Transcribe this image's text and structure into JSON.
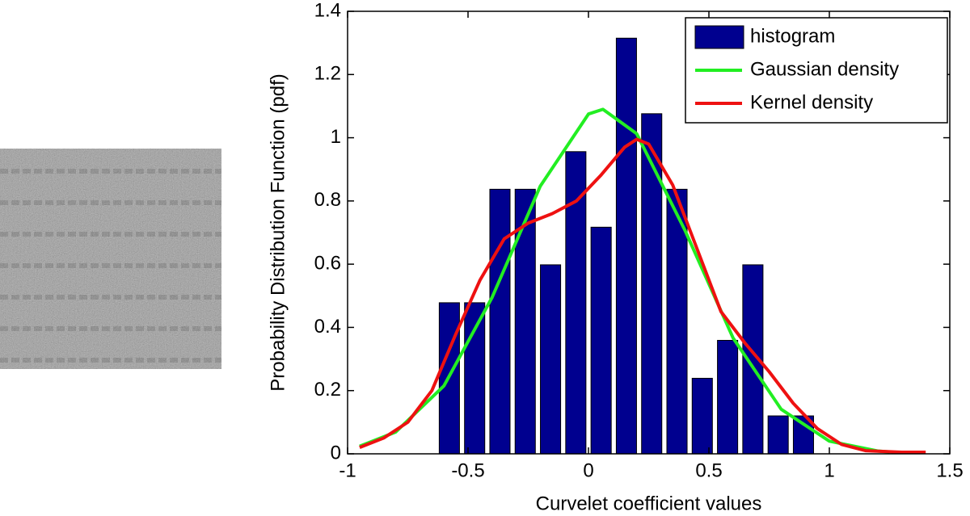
{
  "chart_data": {
    "type": "histogram",
    "xlabel": "Curvelet coefficient values",
    "ylabel": "Probability Distribution Function (pdf)",
    "bins": [
      -0.63,
      -0.525,
      -0.42,
      -0.315,
      -0.21,
      -0.105,
      0,
      0.105,
      0.21,
      0.315,
      0.42,
      0.525,
      0.63,
      0.735,
      0.84,
      0.945
    ],
    "series": [
      {
        "name": "histogram",
        "color": "#00008f",
        "values": [
          0.478,
          0.478,
          0.837,
          0.837,
          0.598,
          0.956,
          0.717,
          1.315,
          1.076,
          0.837,
          0.239,
          0.359,
          0.598,
          0.12,
          0.12
        ]
      },
      {
        "name": "Gaussian density",
        "type": "line",
        "color": "#22ee22",
        "x": [
          -0.95,
          -0.8,
          -0.6,
          -0.4,
          -0.2,
          0,
          0.06,
          0.2,
          0.4,
          0.6,
          0.8,
          1.0,
          1.2,
          1.25
        ],
        "values": [
          0.024,
          0.069,
          0.215,
          0.495,
          0.847,
          1.075,
          1.09,
          1.013,
          0.708,
          0.367,
          0.141,
          0.04,
          0.009,
          0.006
        ]
      },
      {
        "name": "Kernel density",
        "type": "line",
        "color": "#ee1111",
        "x": [
          -0.95,
          -0.85,
          -0.75,
          -0.65,
          -0.55,
          -0.45,
          -0.35,
          -0.25,
          -0.15,
          -0.05,
          0.05,
          0.15,
          0.2,
          0.25,
          0.35,
          0.45,
          0.55,
          0.65,
          0.75,
          0.85,
          0.95,
          1.05,
          1.15,
          1.3,
          1.4
        ],
        "values": [
          0.02,
          0.05,
          0.1,
          0.2,
          0.38,
          0.55,
          0.68,
          0.73,
          0.76,
          0.8,
          0.88,
          0.97,
          0.995,
          0.98,
          0.85,
          0.65,
          0.45,
          0.35,
          0.26,
          0.16,
          0.08,
          0.03,
          0.01,
          0.005,
          0.005
        ]
      }
    ],
    "xlim": [
      -1,
      1.5
    ],
    "xticks": [
      -1,
      -0.5,
      0,
      0.5,
      1,
      1.5
    ],
    "ylim": [
      0,
      1.4
    ],
    "yticks": [
      0,
      0.2,
      0.4,
      0.6,
      0.8,
      1,
      1.2,
      1.4
    ],
    "legend": "upper right"
  }
}
